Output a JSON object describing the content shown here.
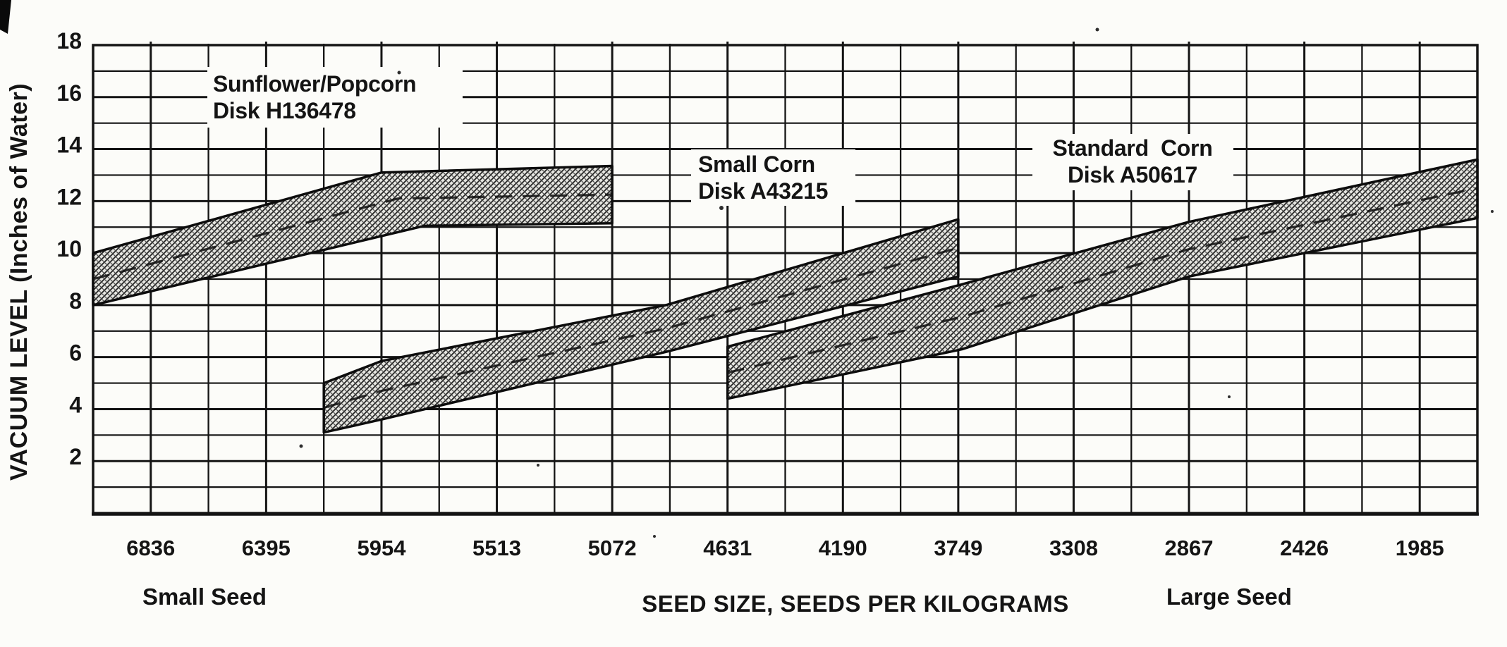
{
  "page": {
    "background": "#fcfcf9",
    "ink": "#141414"
  },
  "chart_data": {
    "type": "area",
    "title": "",
    "xlabel": "SEED SIZE, SEEDS PER KILOGRAMS",
    "ylabel": "VACUUM LEVEL (Inches of Water)",
    "grid": true,
    "x_axis": {
      "tick_labels": [
        "6836",
        "6395",
        "5954",
        "5513",
        "5072",
        "4631",
        "4190",
        "3749",
        "3308",
        "2867",
        "2426",
        "1985"
      ],
      "tick_values": [
        6836,
        6395,
        5954,
        5513,
        5072,
        4631,
        4190,
        3749,
        3308,
        2867,
        2426,
        1985
      ],
      "range_left": 7056.5,
      "range_right": 1764.5,
      "gridline_step": 220.5,
      "left_annotation": "Small Seed",
      "right_annotation": "Large Seed"
    },
    "y_axis": {
      "tick_labels": [
        "18",
        "16",
        "14",
        "12",
        "10",
        "8",
        "6",
        "4",
        "2"
      ],
      "tick_values": [
        18,
        16,
        14,
        12,
        10,
        8,
        6,
        4,
        2
      ],
      "min": 0,
      "max": 18,
      "gridline_step": 1
    },
    "series": [
      {
        "name": "Sunflower/Popcorn",
        "disk": "Disk H136478",
        "label_lines": [
          "Sunflower/Popcorn",
          "Disk H136478"
        ],
        "band_top": [
          [
            7056.5,
            10.0
          ],
          [
            5954,
            13.1
          ],
          [
            5072,
            13.35
          ]
        ],
        "band_bottom": [
          [
            5072,
            11.15
          ],
          [
            5790,
            11.05
          ],
          [
            7056.5,
            8.0
          ]
        ],
        "center_line": [
          [
            7056.5,
            9.0
          ],
          [
            5890,
            12.1
          ],
          [
            5072,
            12.25
          ]
        ]
      },
      {
        "name": "Small Corn",
        "disk": "Disk A43215",
        "label_lines": [
          "Small Corn",
          "Disk A43215"
        ],
        "band_top": [
          [
            6174.5,
            5.0
          ],
          [
            5954,
            5.85
          ],
          [
            4867,
            8.0
          ],
          [
            3749,
            11.3
          ]
        ],
        "band_bottom": [
          [
            3749,
            9.1
          ],
          [
            4867,
            6.2
          ],
          [
            5954,
            3.6
          ],
          [
            6174.5,
            3.1
          ]
        ],
        "center_line": [
          [
            6174.5,
            4.05
          ],
          [
            5954,
            4.7
          ],
          [
            4867,
            7.1
          ],
          [
            3749,
            10.2
          ]
        ]
      },
      {
        "name": "Standard  Corn",
        "disk": "Disk A50617",
        "label_lines": [
          "Standard  Corn",
          "Disk A50617"
        ],
        "band_top": [
          [
            4631,
            6.4
          ],
          [
            3735,
            8.8
          ],
          [
            2867,
            11.2
          ],
          [
            1764.5,
            13.6
          ]
        ],
        "band_bottom": [
          [
            1764.5,
            11.35
          ],
          [
            2867,
            9.1
          ],
          [
            3735,
            6.3
          ],
          [
            4631,
            4.4
          ]
        ],
        "center_line": [
          [
            4631,
            5.4
          ],
          [
            3735,
            7.55
          ],
          [
            2867,
            10.15
          ],
          [
            1764.5,
            12.5
          ]
        ]
      }
    ]
  }
}
